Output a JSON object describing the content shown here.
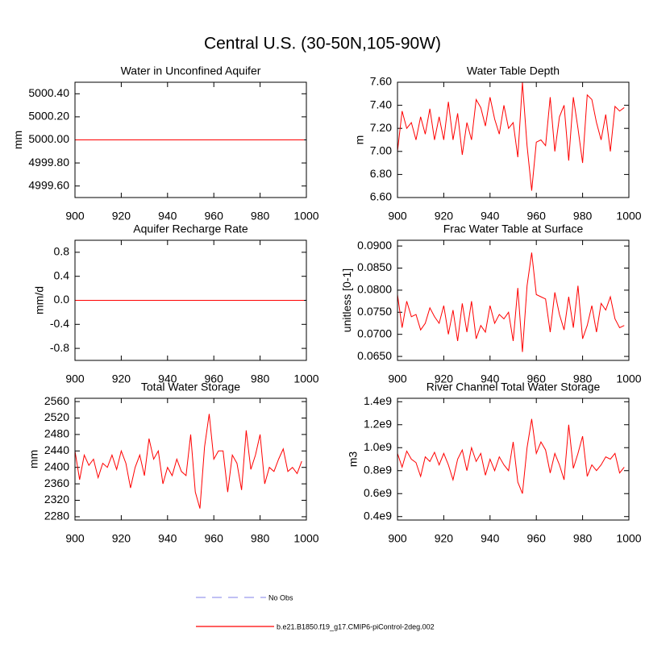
{
  "title": "Central U.S. (30-50N,105-90W)",
  "legend": [
    {
      "name": "No Obs",
      "color": "#9a9aee",
      "dash": true
    },
    {
      "name": "b.e21.B1850.f19_g17.CMIP6-piControl-2deg.002",
      "color": "#ff0000"
    }
  ],
  "chart_data": [
    {
      "type": "line",
      "title": "Water in Unconfined Aquifer",
      "y_label": "mm",
      "color": "#ff0000",
      "x": [
        900,
        999
      ],
      "values": [
        5000,
        5000
      ],
      "xlim": [
        900,
        1000
      ],
      "xticks": [
        900,
        920,
        940,
        960,
        980,
        1000
      ],
      "ylim": [
        4999.5,
        5000.5
      ],
      "yticks": [
        {
          "value": 4999.6,
          "label": "4999.60"
        },
        {
          "value": 4999.8,
          "label": "4999.80"
        },
        {
          "value": 5000,
          "label": "5000.00"
        },
        {
          "value": 5000.2,
          "label": "5000.20"
        },
        {
          "value": 5000.4,
          "label": "5000.40"
        }
      ]
    },
    {
      "type": "line",
      "title": "Water Table Depth",
      "y_label": "m",
      "color": "#ff0000",
      "x": [
        900,
        902,
        904,
        906,
        908,
        910,
        912,
        914,
        916,
        918,
        920,
        922,
        924,
        926,
        928,
        930,
        932,
        934,
        936,
        938,
        940,
        942,
        944,
        946,
        948,
        950,
        952,
        954,
        956,
        958,
        960,
        962,
        964,
        966,
        968,
        970,
        972,
        974,
        976,
        978,
        980,
        982,
        984,
        986,
        988,
        990,
        992,
        994,
        996,
        998
      ],
      "values": [
        7.0,
        7.35,
        7.2,
        7.25,
        7.1,
        7.3,
        7.15,
        7.37,
        7.1,
        7.3,
        7.1,
        7.43,
        7.1,
        7.33,
        6.97,
        7.25,
        7.1,
        7.45,
        7.38,
        7.22,
        7.47,
        7.28,
        7.15,
        7.4,
        7.2,
        7.25,
        6.95,
        7.6,
        7.05,
        6.66,
        7.08,
        7.1,
        7.05,
        7.47,
        7.0,
        7.3,
        7.4,
        6.92,
        7.47,
        7.2,
        6.9,
        7.49,
        7.45,
        7.25,
        7.1,
        7.32,
        7.0,
        7.39,
        7.35,
        7.38
      ],
      "xlim": [
        900,
        1000
      ],
      "xticks": [
        900,
        920,
        940,
        960,
        980,
        1000
      ],
      "ylim": [
        6.6,
        7.6
      ],
      "yticks": [
        {
          "value": 6.6,
          "label": "6.60"
        },
        {
          "value": 6.8,
          "label": "6.80"
        },
        {
          "value": 7.0,
          "label": "7.00"
        },
        {
          "value": 7.2,
          "label": "7.20"
        },
        {
          "value": 7.4,
          "label": "7.40"
        },
        {
          "value": 7.6,
          "label": "7.60"
        }
      ]
    },
    {
      "type": "line",
      "title": "Aquifer Recharge Rate",
      "y_label": "mm/d",
      "color": "#ff0000",
      "x": [
        900,
        999
      ],
      "values": [
        0,
        0
      ],
      "xlim": [
        900,
        1000
      ],
      "xticks": [
        900,
        920,
        940,
        960,
        980,
        1000
      ],
      "ylim": [
        -1,
        1
      ],
      "yticks": [
        -0.8,
        -0.4,
        {
          "value": 0,
          "label": "0.0"
        },
        0.4,
        0.8
      ]
    },
    {
      "type": "line",
      "title": "Frac Water Table at Surface",
      "y_label": "unitless [0-1]",
      "color": "#ff0000",
      "x": [
        900,
        902,
        904,
        906,
        908,
        910,
        912,
        914,
        916,
        918,
        920,
        922,
        924,
        926,
        928,
        930,
        932,
        934,
        936,
        938,
        940,
        942,
        944,
        946,
        948,
        950,
        952,
        954,
        956,
        958,
        960,
        962,
        964,
        966,
        968,
        970,
        972,
        974,
        976,
        978,
        980,
        982,
        984,
        986,
        988,
        990,
        992,
        994,
        996,
        998
      ],
      "values": [
        0.079,
        0.0715,
        0.0775,
        0.074,
        0.0745,
        0.071,
        0.0725,
        0.076,
        0.074,
        0.0725,
        0.0765,
        0.07,
        0.0755,
        0.0685,
        0.077,
        0.0705,
        0.0775,
        0.069,
        0.072,
        0.0705,
        0.0765,
        0.0725,
        0.0745,
        0.0735,
        0.075,
        0.0685,
        0.0805,
        0.066,
        0.081,
        0.0885,
        0.079,
        0.0785,
        0.078,
        0.0705,
        0.0795,
        0.0745,
        0.071,
        0.0785,
        0.0715,
        0.081,
        0.069,
        0.072,
        0.0765,
        0.0705,
        0.077,
        0.0755,
        0.0785,
        0.0735,
        0.0715,
        0.072
      ],
      "xlim": [
        900,
        1000
      ],
      "xticks": [
        900,
        920,
        940,
        960,
        980,
        1000
      ],
      "ylim": [
        0.0641,
        0.0913
      ],
      "yticks": [
        {
          "value": 0.065,
          "label": "0.0650"
        },
        {
          "value": 0.07,
          "label": "0.0700"
        },
        {
          "value": 0.075,
          "label": "0.0750"
        },
        {
          "value": 0.08,
          "label": "0.0800"
        },
        {
          "value": 0.085,
          "label": "0.0850"
        },
        {
          "value": 0.09,
          "label": "0.0900"
        }
      ]
    },
    {
      "type": "line",
      "title": "Total Water Storage",
      "y_label": "mm",
      "color": "#ff0000",
      "x": [
        900,
        902,
        904,
        906,
        908,
        910,
        912,
        914,
        916,
        918,
        920,
        922,
        924,
        926,
        928,
        930,
        932,
        934,
        936,
        938,
        940,
        942,
        944,
        946,
        948,
        950,
        952,
        954,
        956,
        958,
        960,
        962,
        964,
        966,
        968,
        970,
        972,
        974,
        976,
        978,
        980,
        982,
        984,
        986,
        988,
        990,
        992,
        994,
        996,
        998
      ],
      "values": [
        2440,
        2370,
        2430,
        2405,
        2420,
        2375,
        2410,
        2400,
        2430,
        2395,
        2440,
        2410,
        2350,
        2400,
        2430,
        2380,
        2470,
        2420,
        2440,
        2360,
        2400,
        2380,
        2420,
        2390,
        2380,
        2480,
        2340,
        2300,
        2450,
        2530,
        2420,
        2440,
        2440,
        2340,
        2430,
        2410,
        2345,
        2490,
        2395,
        2430,
        2480,
        2360,
        2400,
        2390,
        2420,
        2445,
        2390,
        2400,
        2385,
        2415
      ],
      "xlim": [
        900,
        1000
      ],
      "xticks": [
        900,
        920,
        940,
        960,
        980,
        1000
      ],
      "ylim": [
        2272,
        2568
      ],
      "yticks": [
        2280,
        2320,
        2360,
        2400,
        2440,
        2480,
        2520,
        2560
      ]
    },
    {
      "type": "line",
      "title": "River Channel Total Water Storage",
      "y_label": "m3",
      "color": "#ff0000",
      "x": [
        900,
        902,
        904,
        906,
        908,
        910,
        912,
        914,
        916,
        918,
        920,
        922,
        924,
        926,
        928,
        930,
        932,
        934,
        936,
        938,
        940,
        942,
        944,
        946,
        948,
        950,
        952,
        954,
        956,
        958,
        960,
        962,
        964,
        966,
        968,
        970,
        972,
        974,
        976,
        978,
        980,
        982,
        984,
        986,
        988,
        990,
        992,
        994,
        996,
        998
      ],
      "values": [
        950000000,
        830000000,
        970000000,
        900000000,
        870000000,
        750000000,
        920000000,
        880000000,
        960000000,
        850000000,
        950000000,
        850000000,
        720000000,
        900000000,
        980000000,
        800000000,
        1000000000,
        880000000,
        950000000,
        760000000,
        900000000,
        800000000,
        920000000,
        850000000,
        800000000,
        1050000000,
        700000000,
        600000000,
        1000000000,
        1250000000,
        950000000,
        1050000000,
        980000000,
        780000000,
        950000000,
        850000000,
        720000000,
        1200000000,
        820000000,
        950000000,
        1100000000,
        750000000,
        850000000,
        800000000,
        850000000,
        920000000,
        900000000,
        950000000,
        780000000,
        830000000
      ],
      "xlim": [
        900,
        1000
      ],
      "xticks": [
        900,
        920,
        940,
        960,
        980,
        1000
      ],
      "ylim": [
        370000000,
        1430000000
      ],
      "yticks": [
        {
          "value": 400000000,
          "label": "0.4e9"
        },
        {
          "value": 600000000,
          "label": "0.6e9"
        },
        {
          "value": 800000000,
          "label": "0.8e9"
        },
        {
          "value": 1000000000,
          "label": "1.0e9"
        },
        {
          "value": 1200000000,
          "label": "1.2e9"
        },
        {
          "value": 1400000000,
          "label": "1.4e9"
        }
      ]
    }
  ]
}
